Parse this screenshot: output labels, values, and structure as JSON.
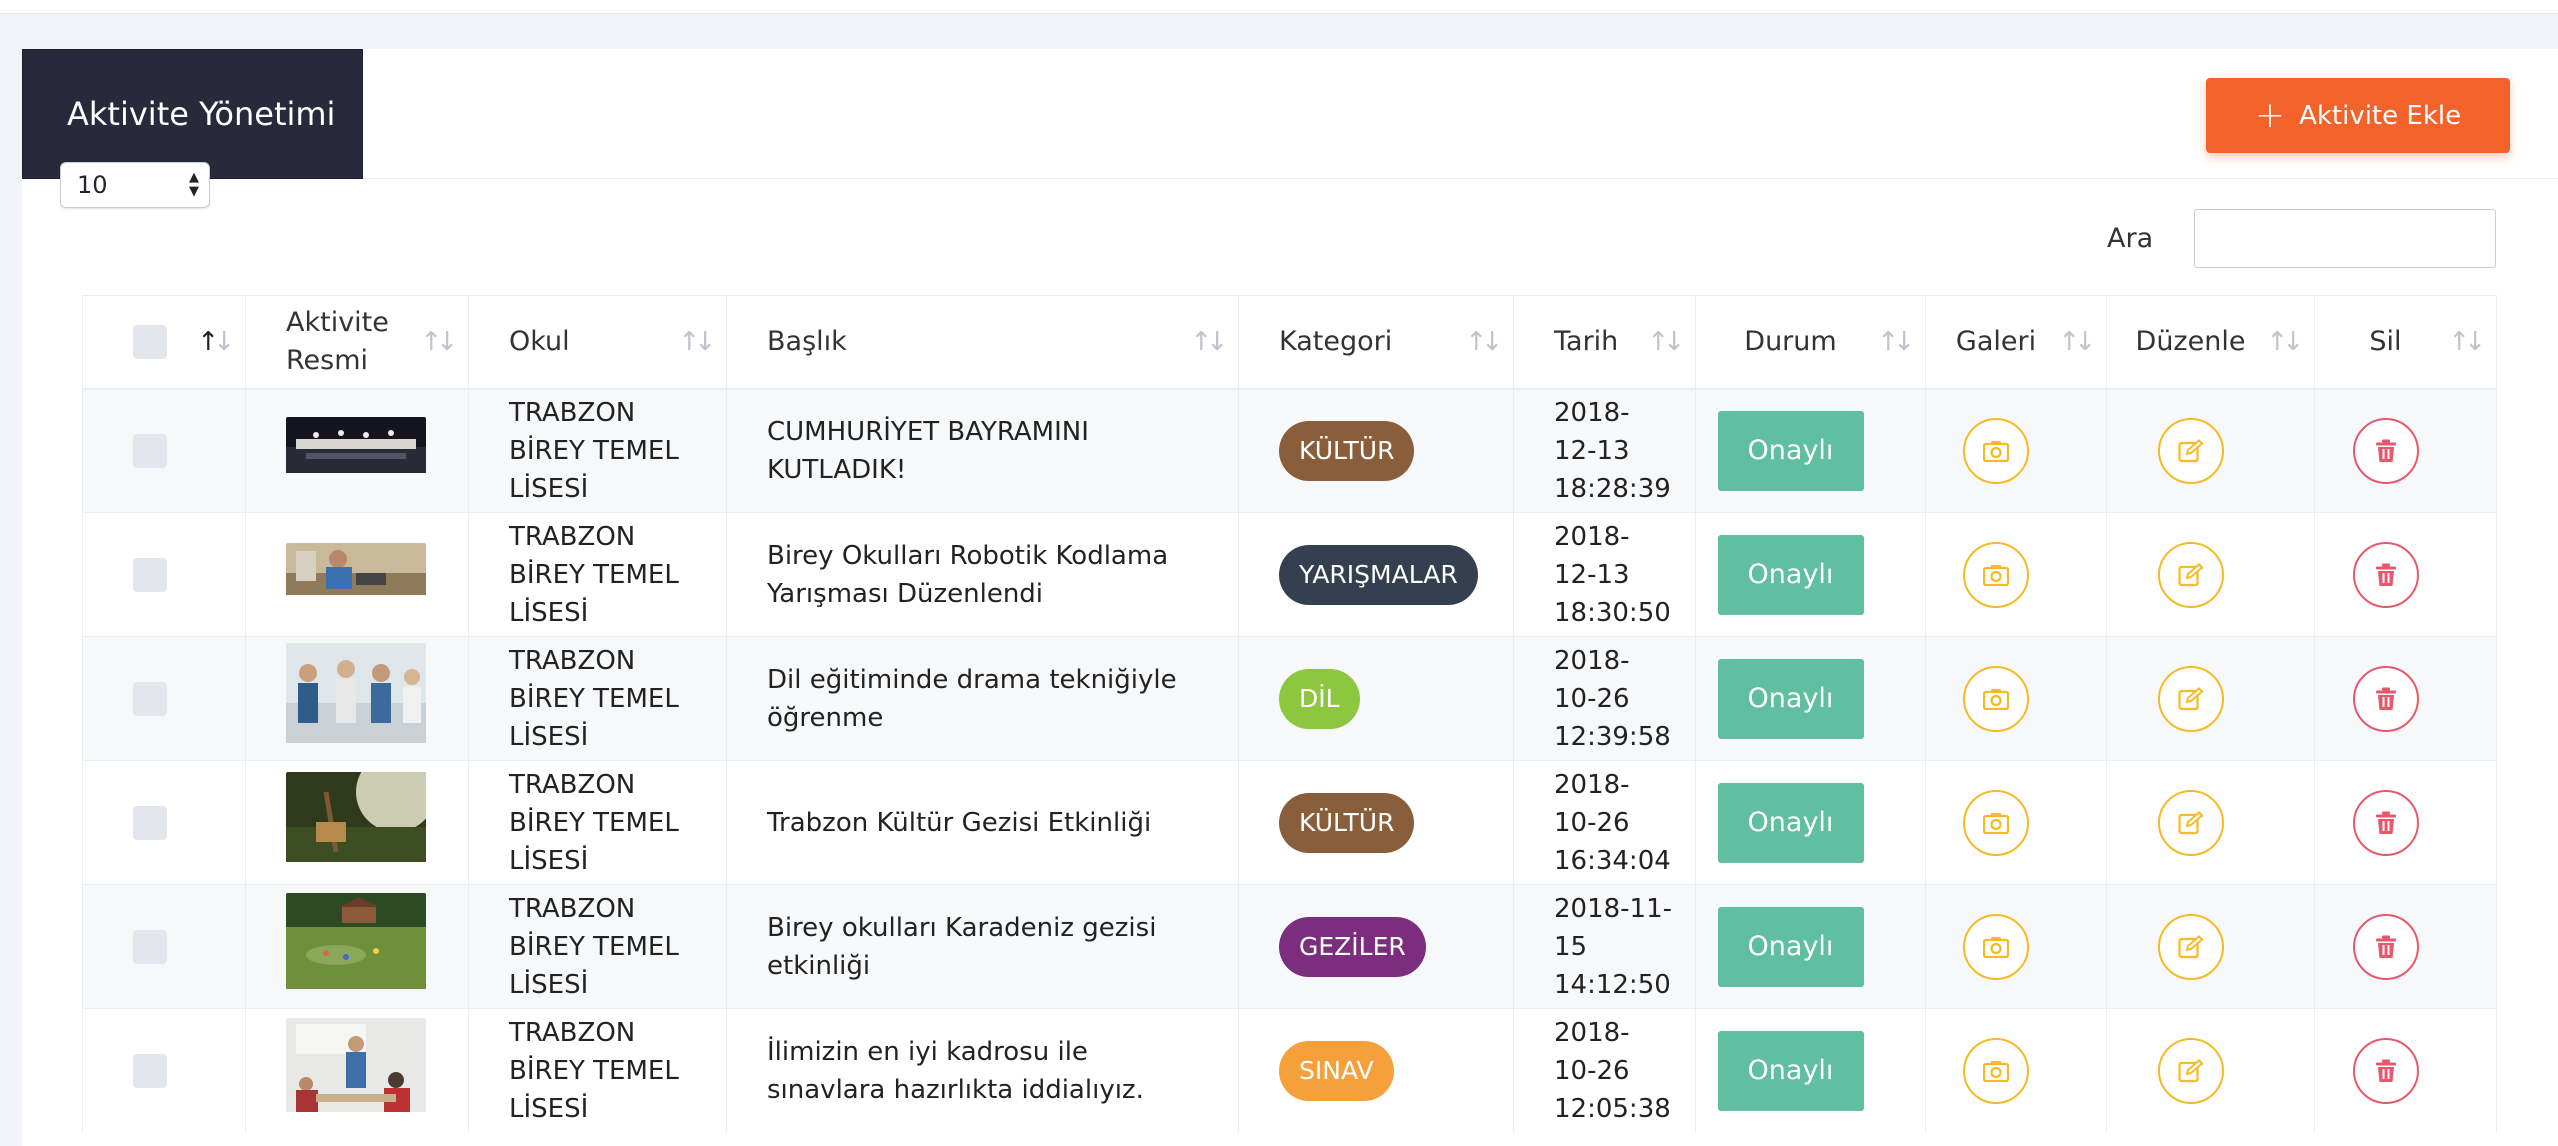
{
  "header": {
    "title": "Aktivite Yönetimi",
    "add_button": "Aktivite Ekle"
  },
  "controls": {
    "page_length": "10",
    "search_label": "Ara",
    "search_value": ""
  },
  "columns": {
    "image": "Aktivite Resmi",
    "school": "Okul",
    "title": "Başlık",
    "category": "Kategori",
    "date": "Tarih",
    "status": "Durum",
    "gallery": "Galeri",
    "edit": "Düzenle",
    "delete": "Sil"
  },
  "category_colors": {
    "KÜLTÜR": "#8a5e3b",
    "YARIŞMALAR": "#34404f",
    "DİL": "#8dc63f",
    "GEZİLER": "#7b2d7e",
    "SINAV": "#f5a03a"
  },
  "accent_colors": {
    "primary": "#f4622c",
    "status": "#5fbfa0",
    "gallery": "#f7b924",
    "edit": "#f7b924",
    "delete": "#e8586a"
  },
  "rows": [
    {
      "school": [
        "TRABZON",
        "BİREY TEMEL",
        "LİSESİ"
      ],
      "title": "CUMHURİYET BAYRAMINI KUTLADIK!",
      "category": "KÜLTÜR",
      "date": [
        "2018-",
        "12-13",
        "18:28:39"
      ],
      "status": "Onaylı",
      "image": "stage-photo"
    },
    {
      "school": [
        "TRABZON",
        "BİREY TEMEL",
        "LİSESİ"
      ],
      "title": "Birey Okulları Robotik Kodlama Yarışması Düzenlendi",
      "category": "YARIŞMALAR",
      "date": [
        "2018-",
        "12-13",
        "18:30:50"
      ],
      "status": "Onaylı",
      "image": "robotics-photo"
    },
    {
      "school": [
        "TRABZON",
        "BİREY TEMEL",
        "LİSESİ"
      ],
      "title": "Dil eğitiminde drama tekniğiyle öğrenme",
      "category": "DİL",
      "date": [
        "2018-",
        "10-26",
        "12:39:58"
      ],
      "status": "Onaylı",
      "image": "students-photo"
    },
    {
      "school": [
        "TRABZON",
        "BİREY TEMEL",
        "LİSESİ"
      ],
      "title": "Trabzon Kültür Gezisi Etkinliği",
      "category": "KÜLTÜR",
      "date": [
        "2018-",
        "10-26",
        "16:34:04"
      ],
      "status": "Onaylı",
      "image": "nature-photo"
    },
    {
      "school": [
        "TRABZON",
        "BİREY TEMEL",
        "LİSESİ"
      ],
      "title": "Birey okulları Karadeniz gezisi etkinliği",
      "category": "GEZİLER",
      "date": [
        "2018-11-",
        "15",
        "14:12:50"
      ],
      "status": "Onaylı",
      "image": "field-photo"
    },
    {
      "school": [
        "TRABZON",
        "BİREY TEMEL",
        "LİSESİ"
      ],
      "title": "İlimizin en iyi kadrosu ile sınavlara hazırlıkta iddialıyız.",
      "category": "SINAV",
      "date": [
        "2018-",
        "10-26",
        "12:05:38"
      ],
      "status": "Onaylı",
      "image": "classroom-photo"
    }
  ]
}
